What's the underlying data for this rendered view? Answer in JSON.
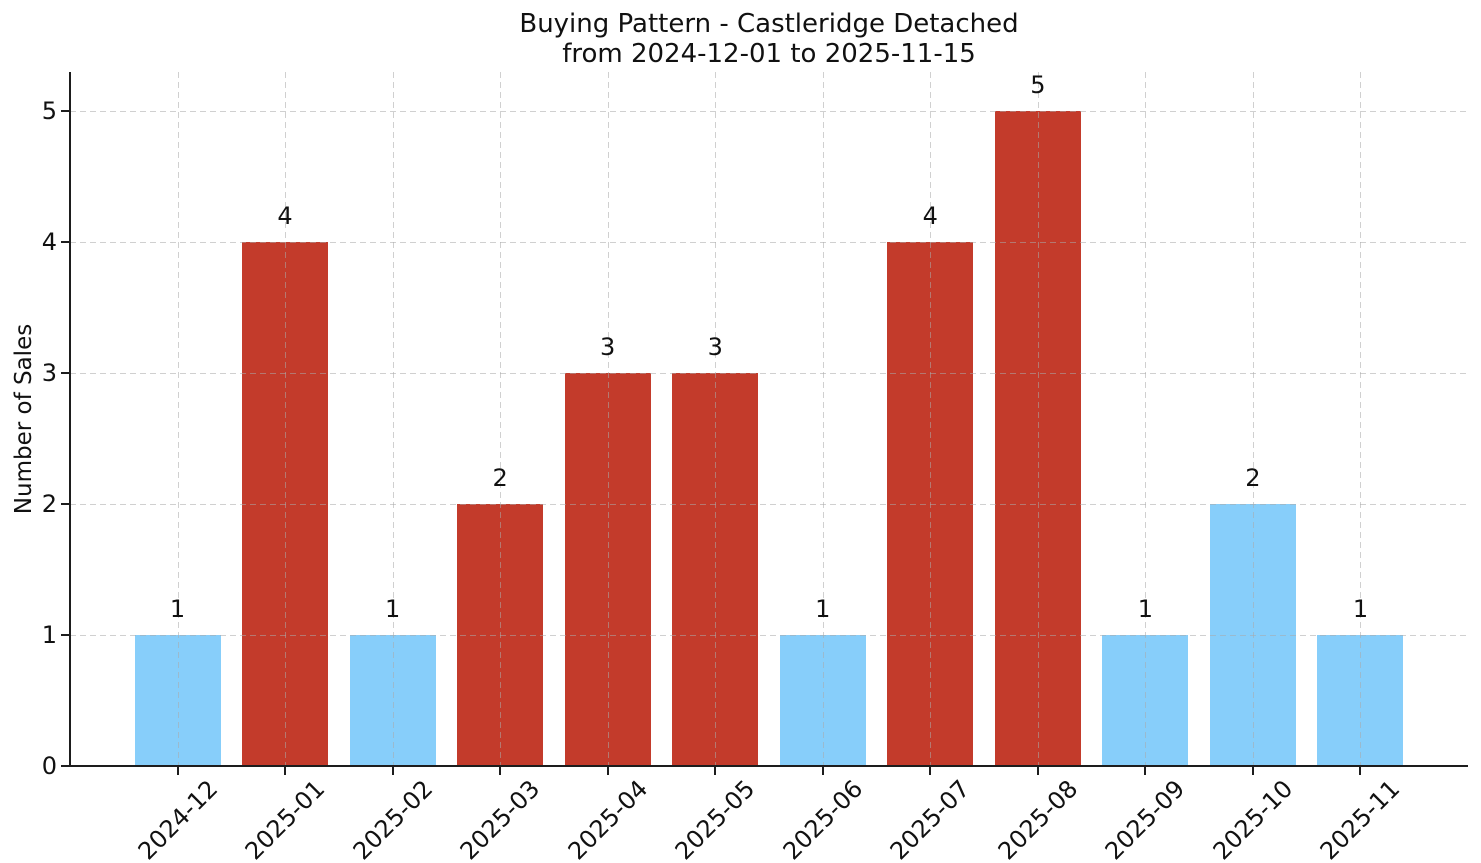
{
  "chart_data": {
    "type": "bar",
    "title": "Buying Pattern - Castleridge Detached",
    "subtitle": "from 2024-12-01 to 2025-11-15",
    "xlabel": "",
    "ylabel": "Number of Sales",
    "categories": [
      "2024-12",
      "2025-01",
      "2025-02",
      "2025-03",
      "2025-04",
      "2025-05",
      "2025-06",
      "2025-07",
      "2025-08",
      "2025-09",
      "2025-10",
      "2025-11"
    ],
    "values": [
      1,
      4,
      1,
      2,
      3,
      3,
      1,
      4,
      5,
      1,
      2,
      1
    ],
    "value_labels": [
      "1",
      "4",
      "1",
      "2",
      "3",
      "3",
      "1",
      "4",
      "5",
      "1",
      "2",
      "1"
    ],
    "bar_colors": [
      "#87CEFA",
      "#C33B2B",
      "#87CEFA",
      "#C33B2B",
      "#C33B2B",
      "#C33B2B",
      "#87CEFA",
      "#C33B2B",
      "#C33B2B",
      "#87CEFA",
      "#87CEFA",
      "#87CEFA"
    ],
    "colors": {
      "bar_blue": "#87CEFA",
      "bar_red": "#C33B2B",
      "grid": "#d9d9d9",
      "axis": "#1d1d1d",
      "text": "#111111",
      "background": "#ffffff"
    },
    "y_ticks": [
      "0",
      "1",
      "2",
      "3",
      "4",
      "5"
    ],
    "ylim": [
      0,
      5.3
    ],
    "xtick_rotation": 45,
    "grid": "dashed horizontal lines at integer values and dashed vertical lines at each category",
    "legend": "none"
  }
}
